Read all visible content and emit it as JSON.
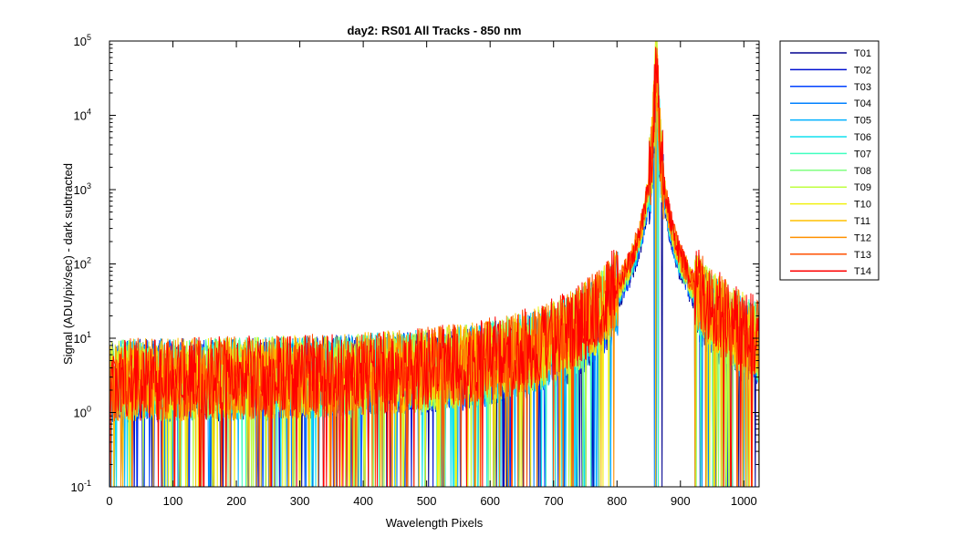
{
  "chart_data": {
    "type": "line",
    "title": "day2: RS01  All Tracks - 850 nm",
    "xlabel": "Wavelength Pixels",
    "ylabel": "Signal (ADU/pix/sec) - dark subtracted",
    "xlim": [
      0,
      1024
    ],
    "ylim": [
      0.1,
      100000
    ],
    "yscale": "log",
    "grid": false,
    "legend_position": "outside-right",
    "x_ticks": [
      0,
      100,
      200,
      300,
      400,
      500,
      600,
      700,
      800,
      900,
      1000
    ],
    "y_ticks": [
      {
        "value": 0.1,
        "base": "10",
        "exp": "-1"
      },
      {
        "value": 1,
        "base": "10",
        "exp": "0"
      },
      {
        "value": 10,
        "base": "10",
        "exp": "1"
      },
      {
        "value": 100,
        "base": "10",
        "exp": "2"
      },
      {
        "value": 1000,
        "base": "10",
        "exp": "3"
      },
      {
        "value": 10000,
        "base": "10",
        "exp": "4"
      },
      {
        "value": 100000,
        "base": "10",
        "exp": "5"
      }
    ],
    "profile": {
      "peak_x": 862,
      "peak_value": 48000,
      "noise_floor": 2.5,
      "noise_spread": [
        0.1,
        8
      ]
    },
    "series": [
      {
        "name": "T01",
        "color": "#00008f"
      },
      {
        "name": "T02",
        "color": "#0010d0"
      },
      {
        "name": "T03",
        "color": "#0040ff"
      },
      {
        "name": "T04",
        "color": "#0080ff"
      },
      {
        "name": "T05",
        "color": "#00b0ff"
      },
      {
        "name": "T06",
        "color": "#10e0ef"
      },
      {
        "name": "T07",
        "color": "#40ffbf"
      },
      {
        "name": "T08",
        "color": "#80ff80"
      },
      {
        "name": "T09",
        "color": "#bfff40"
      },
      {
        "name": "T10",
        "color": "#f0f010"
      },
      {
        "name": "T11",
        "color": "#ffc000"
      },
      {
        "name": "T12",
        "color": "#ff9000"
      },
      {
        "name": "T13",
        "color": "#ff5000"
      },
      {
        "name": "T14",
        "color": "#ff0000"
      }
    ]
  }
}
